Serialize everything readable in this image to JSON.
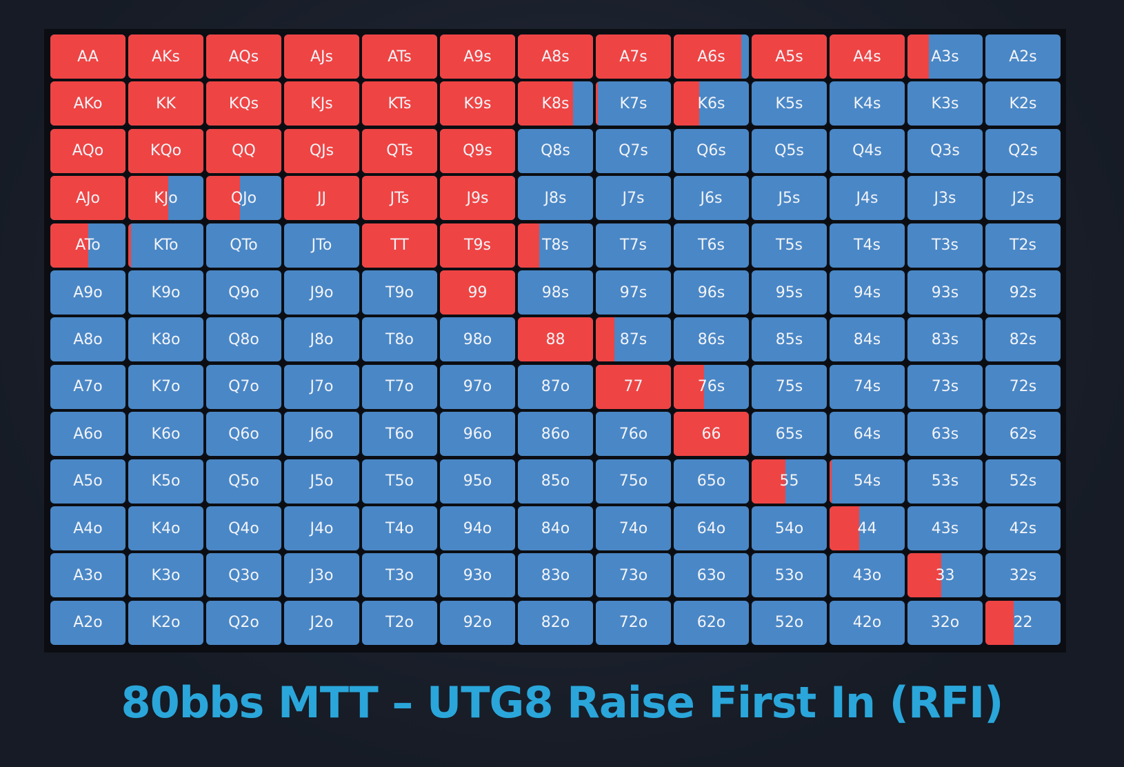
{
  "grid": {
    "rows": [
      [
        "AA",
        "AKs",
        "AQs",
        "AJs",
        "ATs",
        "A9s",
        "A8s",
        "A7s",
        "A6s",
        "A5s",
        "A4s",
        "A3s",
        "A2s"
      ],
      [
        "AKo",
        "KK",
        "KQs",
        "KJs",
        "KTs",
        "K9s",
        "K8s",
        "K7s",
        "K6s",
        "K5s",
        "K4s",
        "K3s",
        "K2s"
      ],
      [
        "AQo",
        "KQo",
        "QQ",
        "QJs",
        "QTs",
        "Q9s",
        "Q8s",
        "Q7s",
        "Q6s",
        "Q5s",
        "Q4s",
        "Q3s",
        "Q2s"
      ],
      [
        "AJo",
        "KJo",
        "QJo",
        "JJ",
        "JTs",
        "J9s",
        "J8s",
        "J7s",
        "J6s",
        "J5s",
        "J4s",
        "J3s",
        "J2s"
      ],
      [
        "ATo",
        "KTo",
        "QTo",
        "JTo",
        "TT",
        "T9s",
        "T8s",
        "T7s",
        "T6s",
        "T5s",
        "T4s",
        "T3s",
        "T2s"
      ],
      [
        "A9o",
        "K9o",
        "Q9o",
        "J9o",
        "T9o",
        "99",
        "98s",
        "97s",
        "96s",
        "95s",
        "94s",
        "93s",
        "92s"
      ],
      [
        "A8o",
        "K8o",
        "Q8o",
        "J8o",
        "T8o",
        "98o",
        "88",
        "87s",
        "86s",
        "85s",
        "84s",
        "83s",
        "82s"
      ],
      [
        "A7o",
        "K7o",
        "Q7o",
        "J7o",
        "T7o",
        "97o",
        "87o",
        "77",
        "76s",
        "75s",
        "74s",
        "73s",
        "72s"
      ],
      [
        "A6o",
        "K6o",
        "Q6o",
        "J6o",
        "T6o",
        "96o",
        "86o",
        "76o",
        "66",
        "65s",
        "64s",
        "63s",
        "62s"
      ],
      [
        "A5o",
        "K5o",
        "Q5o",
        "J5o",
        "T5o",
        "95o",
        "85o",
        "75o",
        "65o",
        "55",
        "54s",
        "53s",
        "52s"
      ],
      [
        "A4o",
        "K4o",
        "Q4o",
        "J4o",
        "T4o",
        "94o",
        "84o",
        "74o",
        "64o",
        "54o",
        "44",
        "43s",
        "42s"
      ],
      [
        "A3o",
        "K3o",
        "Q3o",
        "J3o",
        "T3o",
        "93o",
        "83o",
        "73o",
        "63o",
        "53o",
        "43o",
        "33",
        "32s"
      ],
      [
        "A2o",
        "K2o",
        "Q2o",
        "J2o",
        "T2o",
        "92o",
        "82o",
        "72o",
        "62o",
        "52o",
        "42o",
        "32o",
        "22"
      ]
    ],
    "raise": [
      [
        100,
        100,
        100,
        100,
        100,
        100,
        100,
        100,
        90,
        100,
        100,
        28,
        0
      ],
      [
        100,
        100,
        100,
        100,
        100,
        100,
        73,
        3,
        34,
        0,
        0,
        0,
        0
      ],
      [
        100,
        100,
        100,
        100,
        100,
        100,
        0,
        0,
        0,
        0,
        0,
        0,
        0
      ],
      [
        100,
        53,
        45,
        100,
        100,
        100,
        0,
        0,
        0,
        0,
        0,
        0,
        0
      ],
      [
        50,
        4,
        0,
        0,
        100,
        100,
        28,
        0,
        0,
        0,
        0,
        0,
        0
      ],
      [
        0,
        0,
        0,
        0,
        0,
        100,
        0,
        0,
        0,
        0,
        0,
        0,
        0
      ],
      [
        0,
        0,
        0,
        0,
        0,
        0,
        100,
        25,
        0,
        0,
        0,
        0,
        0
      ],
      [
        0,
        0,
        0,
        0,
        0,
        0,
        0,
        100,
        40,
        0,
        0,
        0,
        0
      ],
      [
        0,
        0,
        0,
        0,
        0,
        0,
        0,
        0,
        100,
        0,
        0,
        0,
        0
      ],
      [
        0,
        0,
        0,
        0,
        0,
        0,
        0,
        0,
        0,
        45,
        3,
        0,
        0
      ],
      [
        0,
        0,
        0,
        0,
        0,
        0,
        0,
        0,
        0,
        0,
        39,
        0,
        0
      ],
      [
        0,
        0,
        0,
        0,
        0,
        0,
        0,
        0,
        0,
        0,
        0,
        45,
        0
      ],
      [
        0,
        0,
        0,
        0,
        0,
        0,
        0,
        0,
        0,
        0,
        0,
        0,
        38
      ]
    ]
  },
  "title": "80bbs MTT – UTG8 Raise First In (RFI)"
}
